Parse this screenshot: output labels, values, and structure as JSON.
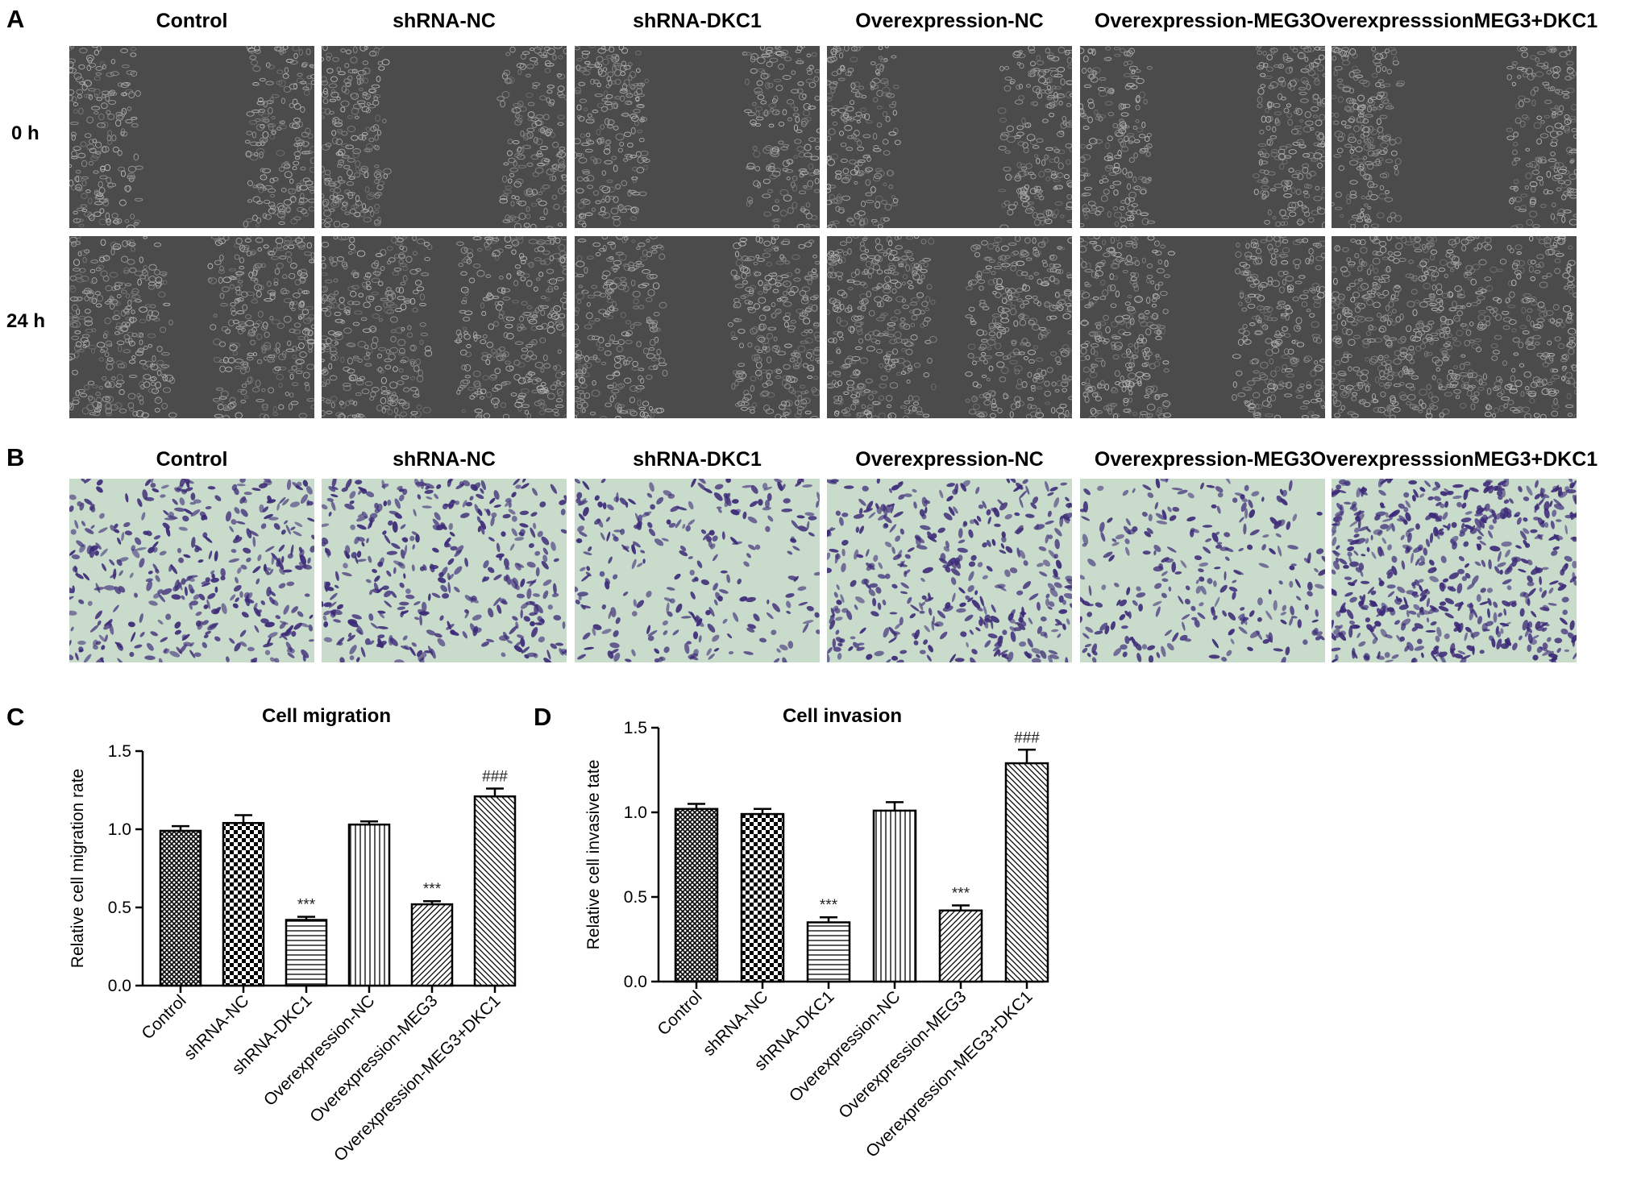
{
  "panels": {
    "a": "A",
    "b": "B",
    "c": "C",
    "d": "D"
  },
  "groups": [
    "Control",
    "shRNA-NC",
    "shRNA-DKC1",
    "Overexpression-NC",
    "Overexpression-MEG3",
    "OverexpresssionMEG3+DKC1"
  ],
  "rows": [
    "0 h",
    "24 h"
  ],
  "image_notes": {
    "wound_0h": [
      "wide gap",
      "wide gap",
      "wide gap",
      "wide gap",
      "wide gap",
      "wide gap"
    ],
    "wound_24h": [
      "partially closed",
      "partially closed",
      "partially closed",
      "partially closed",
      "partially closed",
      "nearly closed"
    ],
    "transwell_density": [
      "medium",
      "medium",
      "low",
      "medium",
      "low",
      "high"
    ]
  },
  "colors": {
    "wound_bg": "#4b4b4b",
    "wound_cells": "#8a8a8a",
    "transwell_bg": "#c9dccb",
    "transwell_cells": "#3d2a78",
    "bar_stroke": "#000000"
  },
  "chart_data": [
    {
      "type": "bar",
      "title": "Cell migration",
      "ylabel": "Relative cell migration rate",
      "xlabel": "",
      "categories": [
        "Control",
        "shRNA-NC",
        "shRNA-DKC1",
        "Overexpression-NC",
        "Overexpression-MEG3",
        "Overexpression-MEG3+DKC1"
      ],
      "values": [
        0.99,
        1.04,
        0.42,
        1.03,
        0.52,
        1.21
      ],
      "errors": [
        0.03,
        0.05,
        0.02,
        0.02,
        0.02,
        0.05
      ],
      "annotations": [
        "",
        "",
        "***",
        "",
        "***",
        "###"
      ],
      "patterns": [
        "crosshatch-fine",
        "checker",
        "horizontal",
        "vertical",
        "diagonal",
        "diagonal-back"
      ],
      "ylim": [
        0,
        1.5
      ],
      "yticks": [
        "0.0",
        "0.5",
        "1.0",
        "1.5"
      ],
      "grid": false
    },
    {
      "type": "bar",
      "title": "Cell invasion",
      "ylabel": "Relative cell invasive tate",
      "xlabel": "",
      "categories": [
        "Control",
        "shRNA-NC",
        "shRNA-DKC1",
        "Overexpression-NC",
        "Overexpression-MEG3",
        "Overexpression-MEG3+DKC1"
      ],
      "values": [
        1.02,
        0.99,
        0.35,
        1.01,
        0.42,
        1.29
      ],
      "errors": [
        0.03,
        0.03,
        0.03,
        0.05,
        0.03,
        0.08
      ],
      "annotations": [
        "",
        "",
        "***",
        "",
        "***",
        "###"
      ],
      "patterns": [
        "crosshatch-fine",
        "checker",
        "horizontal",
        "vertical",
        "diagonal",
        "diagonal-back"
      ],
      "ylim": [
        0,
        1.5
      ],
      "yticks": [
        "0.0",
        "0.5",
        "1.0",
        "1.5"
      ],
      "grid": false
    }
  ]
}
